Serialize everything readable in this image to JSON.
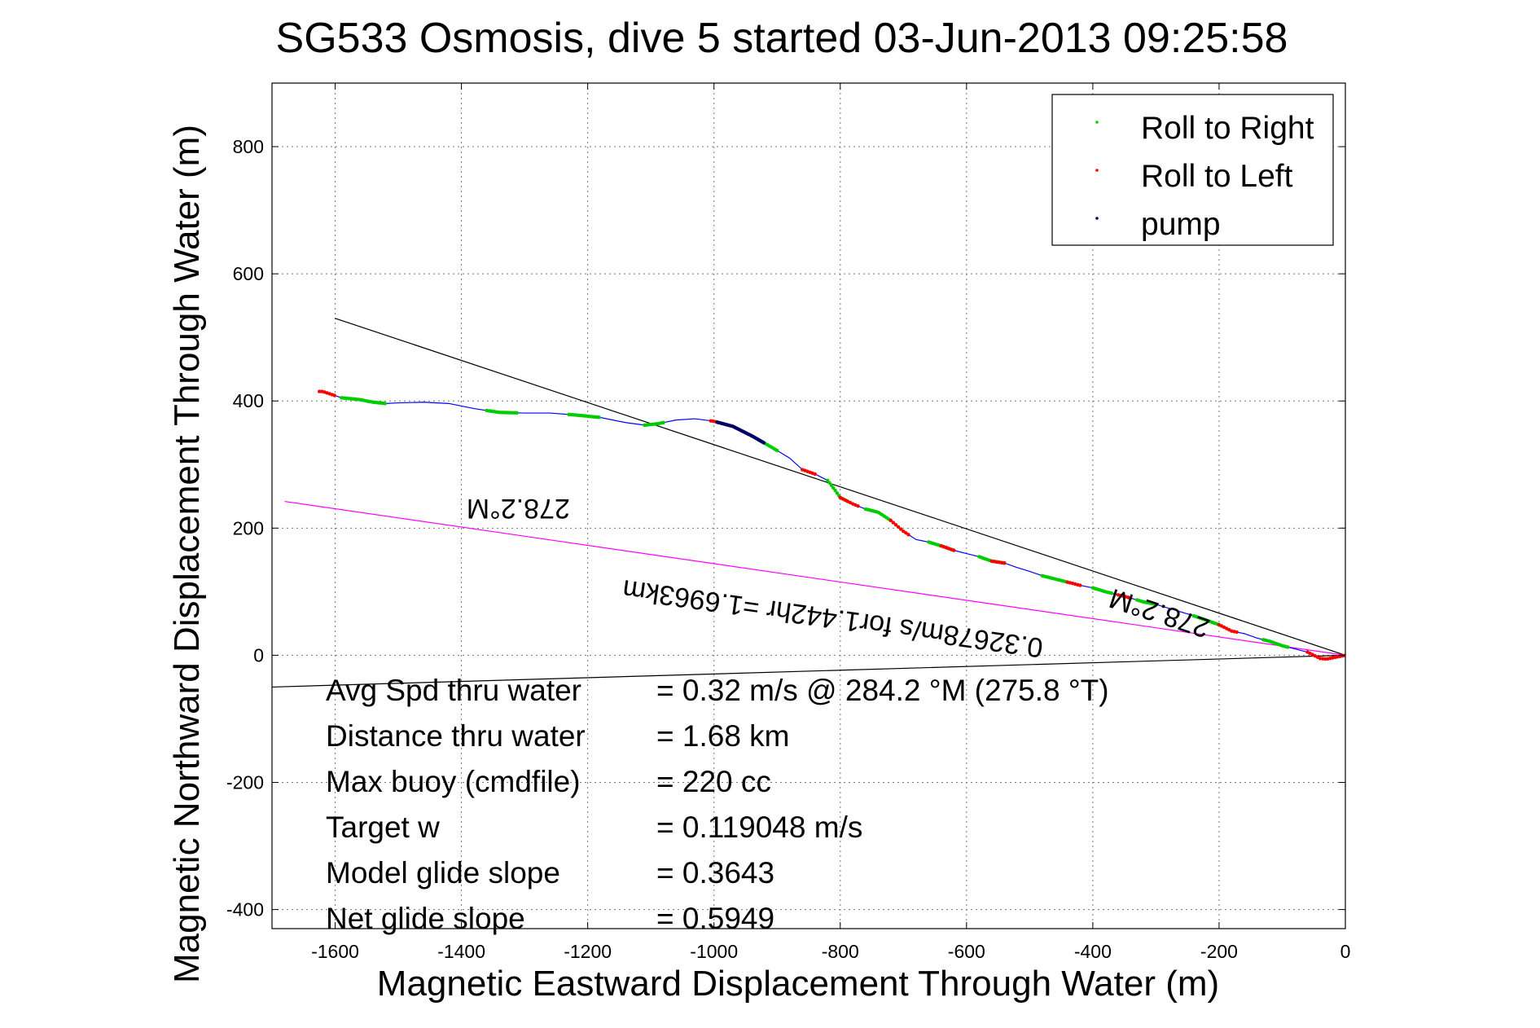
{
  "chart_data": {
    "type": "scatter",
    "title": "SG533 Osmosis, dive 5 started 03-Jun-2013 09:25:58",
    "xlabel": "Magnetic Eastward Displacement Through Water (m)",
    "ylabel": "Magnetic Northward Displacement Through Water (m)",
    "xlim": [
      -1700,
      0
    ],
    "ylim": [
      -430,
      900
    ],
    "xticks": [
      -1600,
      -1400,
      -1200,
      -1000,
      -800,
      -600,
      -400,
      -200,
      0
    ],
    "yticks": [
      -400,
      -200,
      0,
      200,
      400,
      600,
      800
    ],
    "xtick_labels": [
      "-1600",
      "-1400",
      "-1200",
      "-1000",
      "-800",
      "-600",
      "-400",
      "-200",
      "0"
    ],
    "ytick_labels": [
      "-400",
      "-200",
      "0",
      "200",
      "400",
      "600",
      "800"
    ],
    "grid": true,
    "legend": {
      "placement": "top-right",
      "entries": [
        {
          "label": "Roll to Right",
          "color": "#00cc00"
        },
        {
          "label": "Roll to Left",
          "color": "#ff0000"
        },
        {
          "label": "pump",
          "color": "#000066"
        }
      ]
    },
    "series": [
      {
        "name": "track",
        "color": "#0000ff",
        "points": [
          [
            -1620,
            415
          ],
          [
            -1590,
            405
          ],
          [
            -1560,
            402
          ],
          [
            -1540,
            398
          ],
          [
            -1520,
            396
          ],
          [
            -1500,
            397
          ],
          [
            -1460,
            398
          ],
          [
            -1420,
            396
          ],
          [
            -1380,
            388
          ],
          [
            -1340,
            382
          ],
          [
            -1300,
            381
          ],
          [
            -1260,
            381
          ],
          [
            -1220,
            378
          ],
          [
            -1180,
            374
          ],
          [
            -1140,
            366
          ],
          [
            -1110,
            362
          ],
          [
            -1090,
            364
          ],
          [
            -1060,
            370
          ],
          [
            -1030,
            372
          ],
          [
            -1000,
            368
          ],
          [
            -970,
            360
          ],
          [
            -940,
            345
          ],
          [
            -910,
            328
          ],
          [
            -880,
            310
          ],
          [
            -860,
            292
          ],
          [
            -840,
            285
          ],
          [
            -820,
            275
          ],
          [
            -810,
            262
          ],
          [
            -800,
            248
          ],
          [
            -780,
            238
          ],
          [
            -760,
            230
          ],
          [
            -740,
            225
          ],
          [
            -720,
            212
          ],
          [
            -700,
            195
          ],
          [
            -680,
            182
          ],
          [
            -660,
            178
          ],
          [
            -640,
            172
          ],
          [
            -620,
            165
          ],
          [
            -600,
            160
          ],
          [
            -580,
            155
          ],
          [
            -560,
            148
          ],
          [
            -540,
            145
          ],
          [
            -520,
            138
          ],
          [
            -500,
            132
          ],
          [
            -480,
            125
          ],
          [
            -460,
            120
          ],
          [
            -440,
            115
          ],
          [
            -420,
            110
          ],
          [
            -400,
            106
          ],
          [
            -380,
            100
          ],
          [
            -360,
            95
          ],
          [
            -340,
            90
          ],
          [
            -320,
            84
          ],
          [
            -300,
            80
          ],
          [
            -280,
            74
          ],
          [
            -260,
            68
          ],
          [
            -240,
            62
          ],
          [
            -220,
            55
          ],
          [
            -200,
            48
          ],
          [
            -180,
            38
          ],
          [
            -160,
            34
          ],
          [
            -140,
            27
          ],
          [
            -120,
            22
          ],
          [
            -100,
            15
          ],
          [
            -80,
            10
          ],
          [
            -60,
            5
          ],
          [
            -50,
            0
          ],
          [
            -40,
            -5
          ],
          [
            -30,
            -6
          ],
          [
            -20,
            -4
          ],
          [
            -10,
            -2
          ],
          [
            0,
            0
          ]
        ]
      }
    ],
    "roll_right_segments": [
      [
        -1590,
        -1520
      ],
      [
        -1360,
        -1310
      ],
      [
        -1230,
        -1180
      ],
      [
        -1110,
        -1080
      ],
      [
        -930,
        -900
      ],
      [
        -820,
        -790
      ],
      [
        -760,
        -720
      ],
      [
        -660,
        -620
      ],
      [
        -580,
        -540
      ],
      [
        -480,
        -440
      ],
      [
        -400,
        -370
      ],
      [
        -330,
        -300
      ],
      [
        -240,
        -200
      ],
      [
        -130,
        -90
      ]
    ],
    "roll_left_segments": [
      [
        -1625,
        -1600
      ],
      [
        -1005,
        -990
      ],
      [
        -860,
        -840
      ],
      [
        -800,
        -770
      ],
      [
        -720,
        -690
      ],
      [
        -640,
        -620
      ],
      [
        -560,
        -540
      ],
      [
        -440,
        -420
      ],
      [
        -360,
        -340
      ],
      [
        -200,
        -170
      ],
      [
        -60,
        0
      ]
    ],
    "pump_segments": [
      [
        -995,
        -920
      ]
    ],
    "lines": [
      {
        "name": "heading-line",
        "color": "#000000",
        "from": [
          -1600,
          530
        ],
        "to": [
          0,
          0
        ]
      },
      {
        "name": "average-line",
        "color": "#ff00ff",
        "from": [
          -1680,
          242
        ],
        "to": [
          0,
          0
        ]
      },
      {
        "name": "current-line",
        "color": "#000000",
        "from": [
          -1700,
          -50
        ],
        "to": [
          0,
          0
        ]
      }
    ],
    "annotations": [
      {
        "text": "278.2°M",
        "x": -1310,
        "y": 245,
        "rotation_deg": 180
      },
      {
        "text": "278.2°M",
        "x": -290,
        "y": 80,
        "rotation_deg": 198
      },
      {
        "text": "0.32678m/s for1.442hr =1.6963km",
        "x": -810,
        "y": 72,
        "rotation_deg": 188
      }
    ],
    "stats": [
      {
        "label": "Avg Spd thru water",
        "value": "=  0.32 m/s @ 284.2 °M (275.8 °T)"
      },
      {
        "label": "Distance thru water",
        "value": "=  1.68 km"
      },
      {
        "label": "Max buoy (cmdfile)",
        "value": "= 220 cc"
      },
      {
        "label": "Target w",
        "value": "= 0.119048 m/s"
      },
      {
        "label": "Model glide slope",
        "value": "= 0.3643"
      },
      {
        "label": "Net glide slope",
        "value": "= 0.5949"
      }
    ]
  }
}
